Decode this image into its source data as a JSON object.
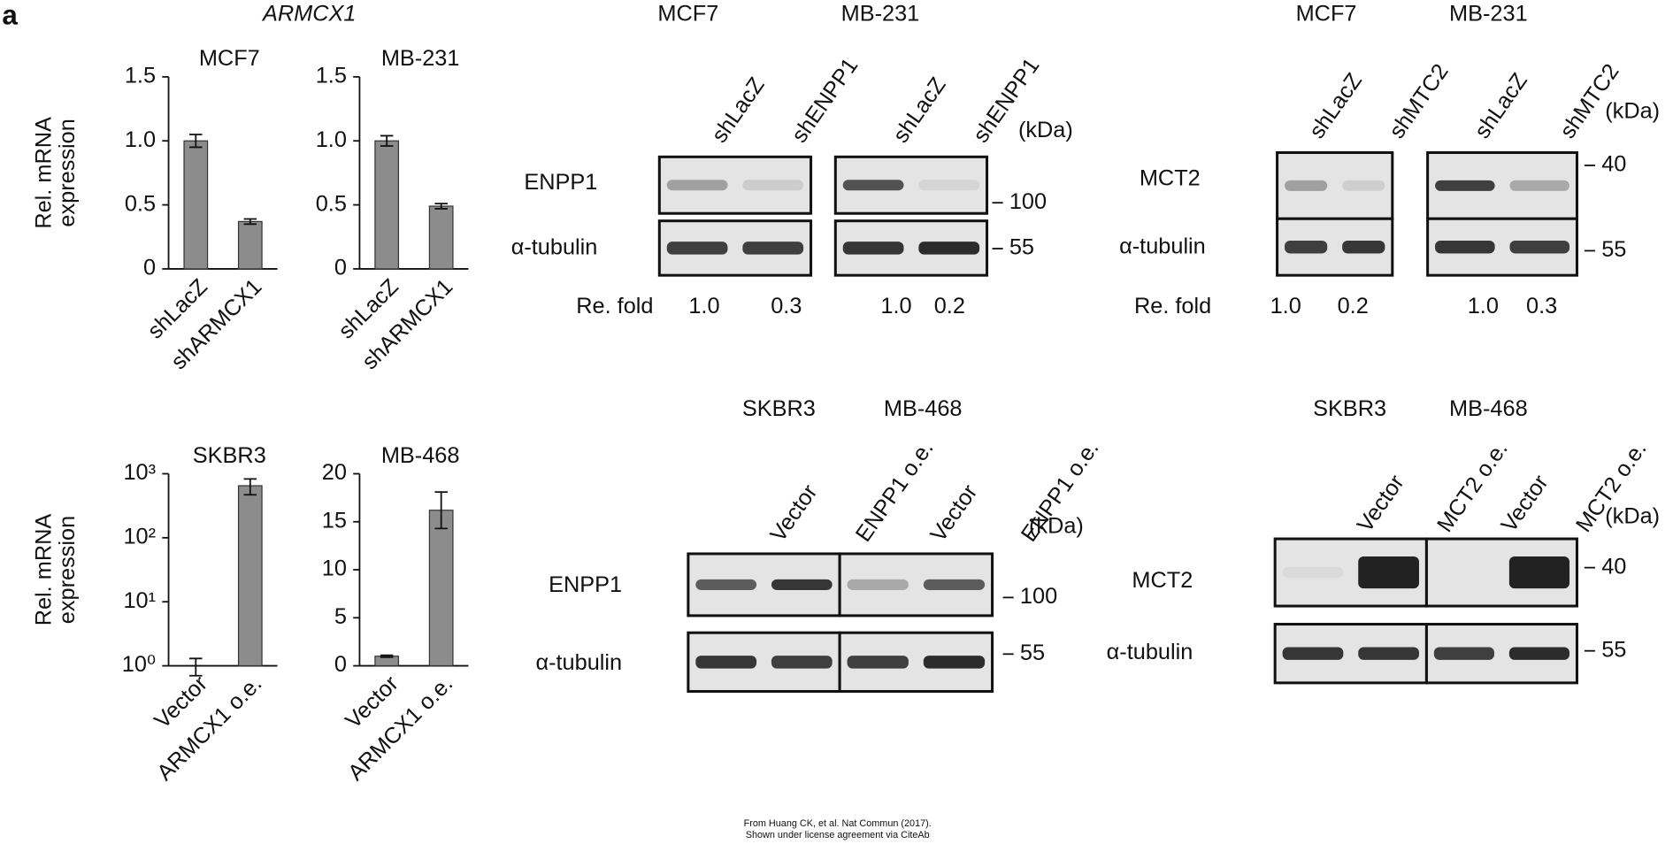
{
  "panel_label": "a",
  "gene_label": "ARMCX1",
  "chart_data": [
    {
      "type": "bar",
      "title": "MCF7",
      "ylabel": [
        "Rel. mRNA",
        "expression"
      ],
      "categories": [
        "shLacZ",
        "shARMCX1"
      ],
      "values": [
        1.0,
        0.37
      ],
      "errors": [
        0.05,
        0.02
      ],
      "color": "#8c8c8c",
      "ylim": [
        0,
        1.5
      ],
      "yticks": [
        0,
        0.5,
        {
          "value": 1,
          "label": "1.0"
        },
        1.5
      ]
    },
    {
      "type": "bar",
      "title": "MB-231",
      "categories": [
        "shLacZ",
        "shARMCX1"
      ],
      "values": [
        1.0,
        0.49
      ],
      "errors": [
        0.04,
        0.02
      ],
      "color": "#8c8c8c",
      "ylim": [
        0,
        1.5
      ],
      "yticks": [
        0,
        0.5,
        {
          "value": 1,
          "label": "1.0"
        },
        1.5
      ]
    },
    {
      "type": "bar",
      "title": "SKBR3",
      "ylabel": [
        "Rel. mRNA",
        "expression"
      ],
      "categories": [
        "Vector",
        "ARMCX1 o.e."
      ],
      "values": [
        1,
        650
      ],
      "errors": [
        0.3,
        180
      ],
      "color": "#8c8c8c",
      "log_scale": true,
      "ylim": [
        1,
        1000
      ],
      "yticks": [
        {
          "value": 1,
          "label": "10⁰"
        },
        {
          "value": 10,
          "label": "10¹"
        },
        {
          "value": 100,
          "label": "10²"
        },
        {
          "value": 1000,
          "label": "10³"
        }
      ]
    },
    {
      "type": "bar",
      "title": "MB-468",
      "categories": [
        "Vector",
        "ARMCX1 o.e."
      ],
      "values": [
        1.0,
        16.2
      ],
      "errors": [
        0.1,
        1.9
      ],
      "color": "#8c8c8c",
      "ylim": [
        0,
        20
      ],
      "yticks": [
        0,
        5,
        10,
        15,
        20
      ]
    }
  ],
  "blots": [
    {
      "cell_lines": [
        "MCF7",
        "MB-231"
      ],
      "lanes": [
        "shLacZ",
        "shENPP1",
        "shLacZ",
        "shENPP1"
      ],
      "unit": "(kDa)",
      "rows": [
        "ENPP1",
        "α-tubulin"
      ],
      "markers": [
        "100",
        "55"
      ],
      "fold_label": "Re. fold",
      "fold_values": [
        "1.0",
        "0.3",
        "1.0",
        "0.2"
      ]
    },
    {
      "cell_lines": [
        "MCF7",
        "MB-231"
      ],
      "lanes": [
        "shLacZ",
        "shMTC2",
        "shLacZ",
        "shMTC2"
      ],
      "unit": "(kDa)",
      "rows": [
        "MCT2",
        "α-tubulin"
      ],
      "markers": [
        "40",
        "55"
      ],
      "fold_label": "Re. fold",
      "fold_values": [
        "1.0",
        "0.2",
        "1.0",
        "0.3"
      ]
    },
    {
      "cell_lines": [
        "SKBR3",
        "MB-468"
      ],
      "lanes": [
        "Vector",
        "ENPP1 o.e.",
        "Vector",
        "ENPP1 o.e."
      ],
      "unit": "(kDa)",
      "rows": [
        "ENPP1",
        "α-tubulin"
      ],
      "markers": [
        "100",
        "55"
      ]
    },
    {
      "cell_lines": [
        "SKBR3",
        "MB-468"
      ],
      "lanes": [
        "Vector",
        "MCT2 o.e.",
        "Vector",
        "MCT2 o.e."
      ],
      "unit": "(kDa)",
      "rows": [
        "MCT2",
        "α-tubulin"
      ],
      "markers": [
        "40",
        "55"
      ]
    }
  ],
  "footer": [
    "From Huang CK, et al. Nat Commun (2017).",
    "Shown under license agreement via CiteAb"
  ]
}
